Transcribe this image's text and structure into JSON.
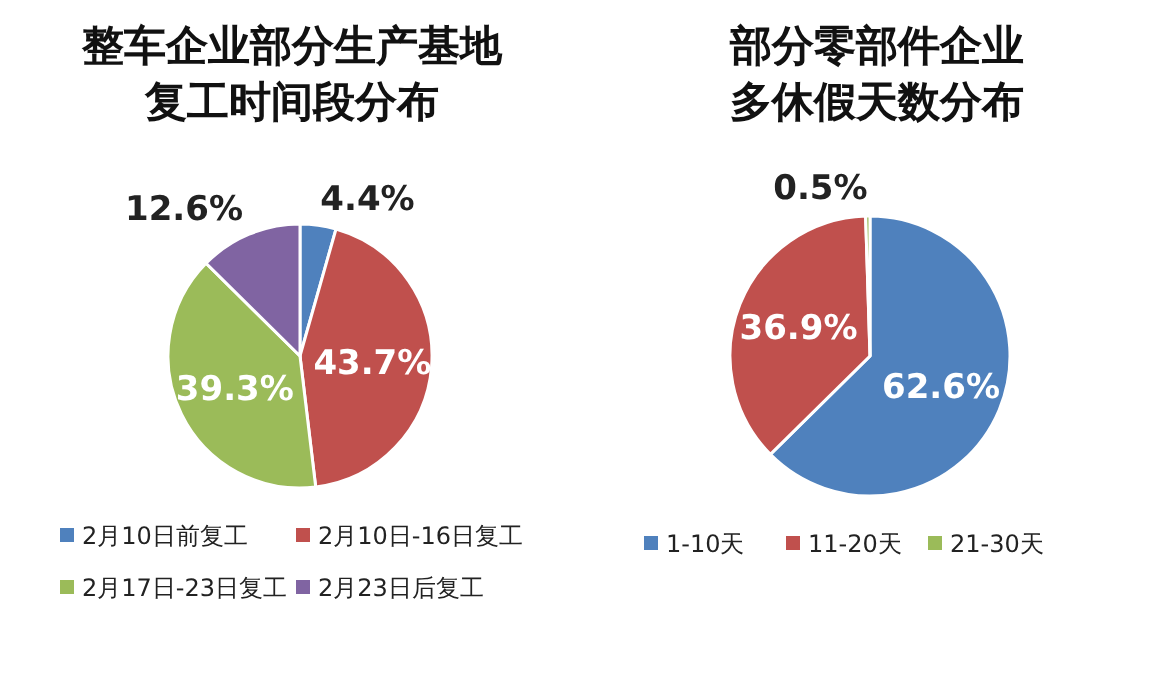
{
  "chart_data": [
    {
      "type": "pie",
      "title": "整车企业部分生产基地复工时间段分布",
      "categories": [
        "2月10日前复工",
        "2月10日-16日复工",
        "2月17日-23日复工",
        "2月23日后复工"
      ],
      "values": [
        4.4,
        43.7,
        39.3,
        12.6
      ],
      "value_labels": [
        "4.4%",
        "43.7%",
        "39.3%",
        "12.6%"
      ],
      "colors": [
        "#4f81bd",
        "#c0504d",
        "#9bbb59",
        "#8064a2"
      ],
      "legend": "bottom"
    },
    {
      "type": "pie",
      "title": "部分零部件企业多休假天数分布",
      "categories": [
        "1-10天",
        "11-20天",
        "21-30天"
      ],
      "values": [
        62.6,
        36.9,
        0.5
      ],
      "value_labels": [
        "62.6%",
        "36.9%",
        "0.5%"
      ],
      "colors": [
        "#4f81bd",
        "#c0504d",
        "#9bbb59"
      ],
      "legend": "bottom"
    }
  ]
}
